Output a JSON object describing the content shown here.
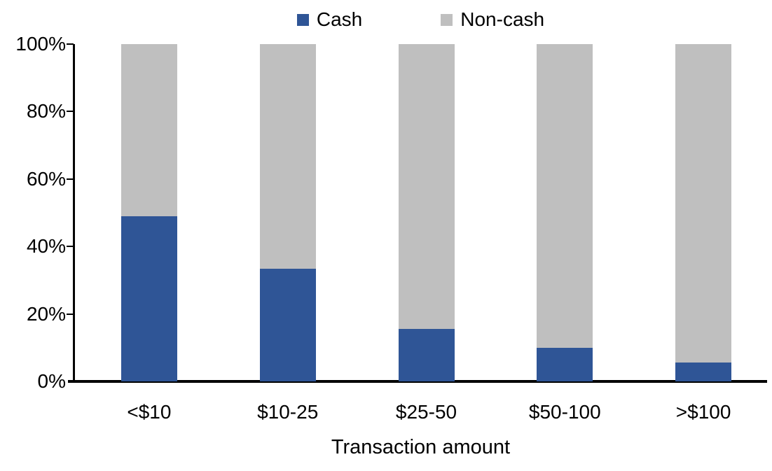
{
  "chart_data": {
    "type": "bar",
    "stacked": true,
    "percent_stacked": true,
    "title": "",
    "xlabel": "Transaction amount",
    "ylabel": "",
    "categories": [
      "<$10",
      "$10-25",
      "$25-50",
      "$50-100",
      ">$100"
    ],
    "series": [
      {
        "name": "Cash",
        "color": "#2F5596",
        "values": [
          49,
          33.5,
          15.5,
          10,
          5.5
        ]
      },
      {
        "name": "Non-cash",
        "color": "#BFBFBF",
        "values": [
          51,
          66.5,
          84.5,
          90,
          94.5
        ]
      }
    ],
    "y_ticks": [
      "0%",
      "20%",
      "40%",
      "60%",
      "80%",
      "100%"
    ],
    "y_tick_values": [
      0,
      20,
      40,
      60,
      80,
      100
    ],
    "ylim": [
      0,
      100
    ],
    "legend_position": "top",
    "grid": false,
    "axis_color": "#000000",
    "text_color": "#000000"
  }
}
